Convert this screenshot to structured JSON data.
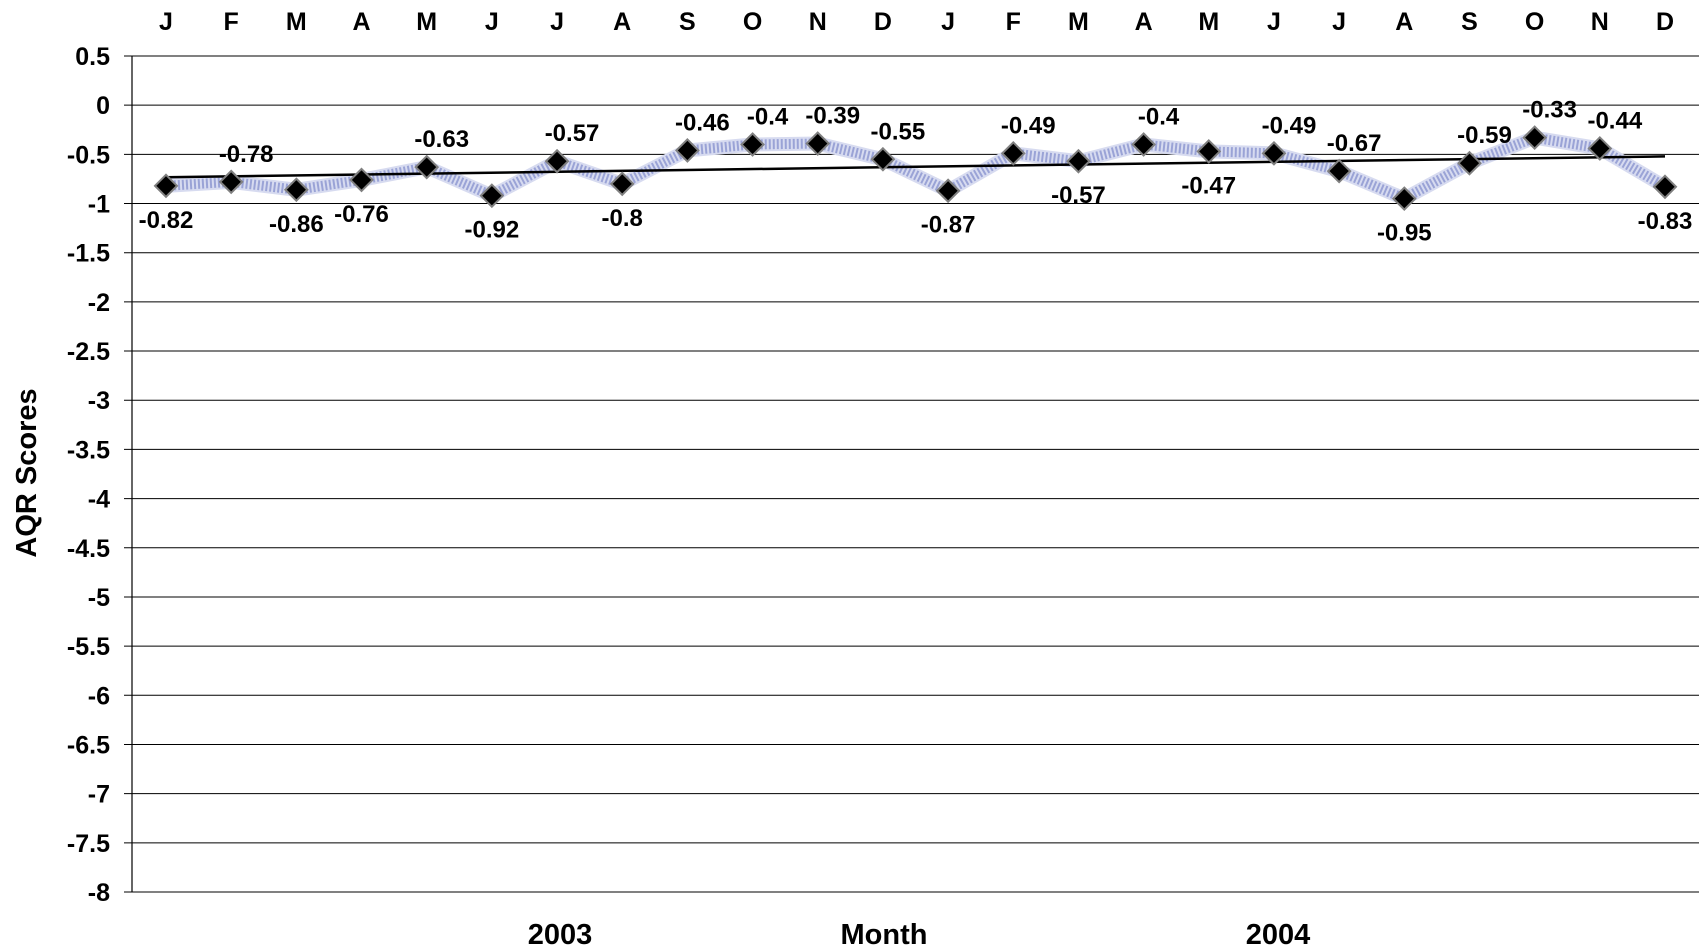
{
  "chart_data": {
    "type": "line",
    "ylabel": "AQR Scores",
    "xlabel": "Month",
    "year_labels": [
      "2003",
      "2004"
    ],
    "categories": [
      "J",
      "F",
      "M",
      "A",
      "M",
      "J",
      "J",
      "A",
      "S",
      "O",
      "N",
      "D",
      "J",
      "F",
      "M",
      "A",
      "M",
      "J",
      "J",
      "A",
      "S",
      "O",
      "N",
      "D"
    ],
    "series": [
      {
        "values": [
          -0.82,
          -0.78,
          -0.86,
          -0.76,
          -0.63,
          -0.92,
          -0.57,
          -0.8,
          -0.46,
          -0.4,
          -0.39,
          -0.55,
          -0.87,
          -0.49,
          -0.57,
          -0.4,
          -0.47,
          -0.49,
          -0.67,
          -0.95,
          -0.59,
          -0.33,
          -0.44,
          -0.83
        ],
        "color": "#9aa3d6",
        "marker": "diamond",
        "marker_color": "#000000"
      }
    ],
    "trendline": {
      "type": "linear",
      "color": "#000000"
    },
    "y_ticks": [
      "0.5",
      "0",
      "-0.5",
      "-1",
      "-1.5",
      "-2",
      "-2.5",
      "-3",
      "-3.5",
      "-4",
      "-4.5",
      "-5",
      "-5.5",
      "-6",
      "-6.5",
      "-7",
      "-7.5",
      "-8"
    ],
    "ylim": [
      -8,
      0.5
    ],
    "grid": true,
    "legend": "none"
  }
}
